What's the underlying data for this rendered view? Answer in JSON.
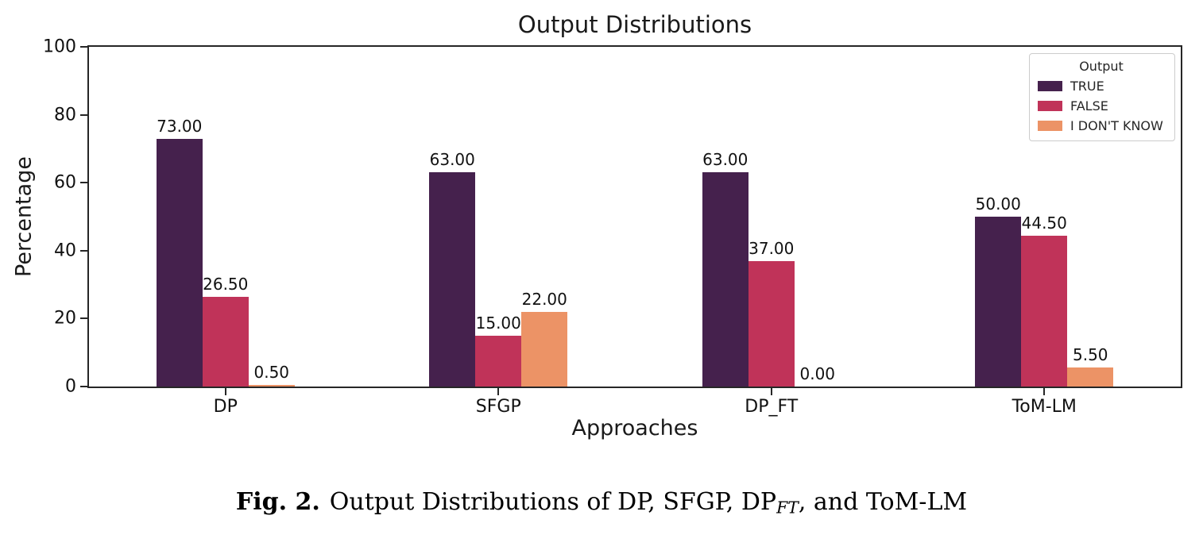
{
  "chart_data": {
    "type": "bar",
    "title": "Output Distributions",
    "xlabel": "Approaches",
    "ylabel": "Percentage",
    "categories": [
      "DP",
      "SFGP",
      "DP_FT",
      "ToM-LM"
    ],
    "series": [
      {
        "name": "TRUE",
        "color": "#45214d",
        "values": [
          73.0,
          63.0,
          63.0,
          50.0
        ]
      },
      {
        "name": "FALSE",
        "color": "#c03359",
        "values": [
          26.5,
          15.0,
          37.0,
          44.5
        ]
      },
      {
        "name": "I DON'T KNOW",
        "color": "#ec9366",
        "values": [
          0.5,
          22.0,
          0.0,
          5.5
        ]
      }
    ],
    "ylim": [
      0,
      100
    ],
    "yticks": [
      0,
      20,
      40,
      60,
      80,
      100
    ],
    "value_label_decimals": 2,
    "legend": {
      "title": "Output",
      "position": "upper right"
    },
    "grid": false,
    "axis_color": "#262626"
  },
  "caption": {
    "label": "Fig. 2.",
    "text_before_sub": "Output Distributions of DP, SFGP, DP",
    "subscript": "FT",
    "text_after_sub": ", and ToM-LM"
  }
}
